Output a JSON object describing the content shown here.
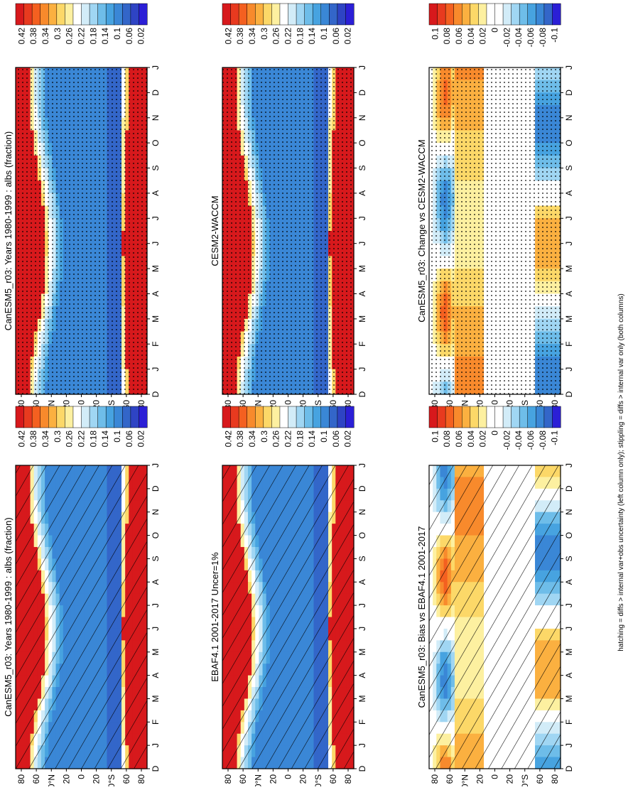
{
  "footnote": "hatching = diffs > internal var+obs uncertainty (left column only); stippling = diffs > internal var only (both columns)",
  "month_labels": [
    "D",
    "J",
    "F",
    "M",
    "A",
    "M",
    "J",
    "J",
    "A",
    "S",
    "O",
    "N",
    "D",
    "J"
  ],
  "lat_labels": [
    "80",
    "60",
    "40°N",
    "20",
    "0",
    "20",
    "40°S",
    "60",
    "80"
  ],
  "palettes": {
    "sequential": [
      "#d7191c",
      "#e83a1f",
      "#f46020",
      "#f88a2c",
      "#fbb040",
      "#fcd868",
      "#fdf0a0",
      "#ffffff",
      "#d2ecf8",
      "#a0d6f3",
      "#6ebde9",
      "#47a3e0",
      "#3a87d6",
      "#3366c9",
      "#2e44c4",
      "#2b1fd6"
    ],
    "diverging": [
      "#d7191c",
      "#e83a1f",
      "#f46020",
      "#f88a2c",
      "#fbb040",
      "#fcd868",
      "#fdf0a0",
      "#ffffff",
      "#ffffff",
      "#d2ecf8",
      "#a0d6f3",
      "#6ebde9",
      "#47a3e0",
      "#3a87d6",
      "#3366c9",
      "#2b1fd6"
    ]
  },
  "chart_data": [
    {
      "type": "heatmap",
      "title": "CanESM5_r03: Years 1980-1999 : albs (fraction)",
      "x": [
        "D",
        "J",
        "F",
        "M",
        "A",
        "M",
        "J",
        "J",
        "A",
        "S",
        "O",
        "N",
        "D",
        "J"
      ],
      "y": [
        "80",
        "60",
        "40°N",
        "20",
        "0",
        "20",
        "40°S",
        "60",
        "80"
      ],
      "colorbar_ticks": [
        "0.42",
        "0.38",
        "0.34",
        "0.3",
        "0.26",
        "0.22",
        "0.18",
        "0.14",
        "0.1",
        "0.06",
        "0.02"
      ],
      "overlay": "hatching"
    },
    {
      "type": "heatmap",
      "title": "CanESM5_r03: Years 1980-1999 : albs (fraction)",
      "x": [
        "D",
        "J",
        "F",
        "M",
        "A",
        "M",
        "J",
        "J",
        "A",
        "S",
        "O",
        "N",
        "D",
        "J"
      ],
      "y": [
        "80",
        "60",
        "40°N",
        "20",
        "0",
        "20",
        "40°S",
        "60",
        "80"
      ],
      "colorbar_ticks": [
        "0.42",
        "0.38",
        "0.34",
        "0.3",
        "0.26",
        "0.22",
        "0.18",
        "0.14",
        "0.1",
        "0.06",
        "0.02"
      ],
      "overlay": "stippling"
    },
    {
      "type": "heatmap",
      "title": "EBAF4.1 2001-2017 Uncer=1%",
      "x": [
        "D",
        "J",
        "F",
        "M",
        "A",
        "M",
        "J",
        "J",
        "A",
        "S",
        "O",
        "N",
        "D",
        "J"
      ],
      "y": [
        "80",
        "60",
        "40°N",
        "20",
        "0",
        "20",
        "40°S",
        "60",
        "80"
      ],
      "colorbar_ticks": [
        "0.42",
        "0.38",
        "0.34",
        "0.3",
        "0.26",
        "0.22",
        "0.18",
        "0.14",
        "0.1",
        "0.06",
        "0.02"
      ],
      "overlay": "hatching"
    },
    {
      "type": "heatmap",
      "title": "CESM2-WACCM",
      "x": [
        "D",
        "J",
        "F",
        "M",
        "A",
        "M",
        "J",
        "J",
        "A",
        "S",
        "O",
        "N",
        "D",
        "J"
      ],
      "y": [
        "80",
        "60",
        "40°N",
        "20",
        "0",
        "20",
        "40°S",
        "60",
        "80"
      ],
      "colorbar_ticks": [
        "0.42",
        "0.38",
        "0.34",
        "0.3",
        "0.26",
        "0.22",
        "0.18",
        "0.14",
        "0.1",
        "0.06",
        "0.02"
      ],
      "overlay": "stippling"
    },
    {
      "type": "heatmap",
      "title": "CanESM5_r03: Bias vs EBAF4.1 2001-2017",
      "x": [
        "D",
        "J",
        "F",
        "M",
        "A",
        "M",
        "J",
        "J",
        "A",
        "S",
        "O",
        "N",
        "D",
        "J"
      ],
      "y": [
        "80",
        "60",
        "40°N",
        "20",
        "0",
        "20",
        "40°S",
        "60",
        "80"
      ],
      "colorbar_ticks": [
        "0.1",
        "0.08",
        "0.06",
        "0.04",
        "0.02",
        "0",
        "-0.02",
        "-0.04",
        "-0.06",
        "-0.08",
        "-0.1"
      ],
      "overlay": "hatching"
    },
    {
      "type": "heatmap",
      "title": "CanESM5_r03: Change vs CESM2-WACCM",
      "x": [
        "D",
        "J",
        "F",
        "M",
        "A",
        "M",
        "J",
        "J",
        "A",
        "S",
        "O",
        "N",
        "D",
        "J"
      ],
      "y": [
        "80",
        "60",
        "40°N",
        "20",
        "0",
        "20",
        "40°S",
        "60",
        "80"
      ],
      "colorbar_ticks": [
        "0.1",
        "0.08",
        "0.06",
        "0.04",
        "0.02",
        "0",
        "-0.02",
        "-0.04",
        "-0.06",
        "-0.08",
        "-0.1"
      ],
      "overlay": "stippling"
    }
  ]
}
